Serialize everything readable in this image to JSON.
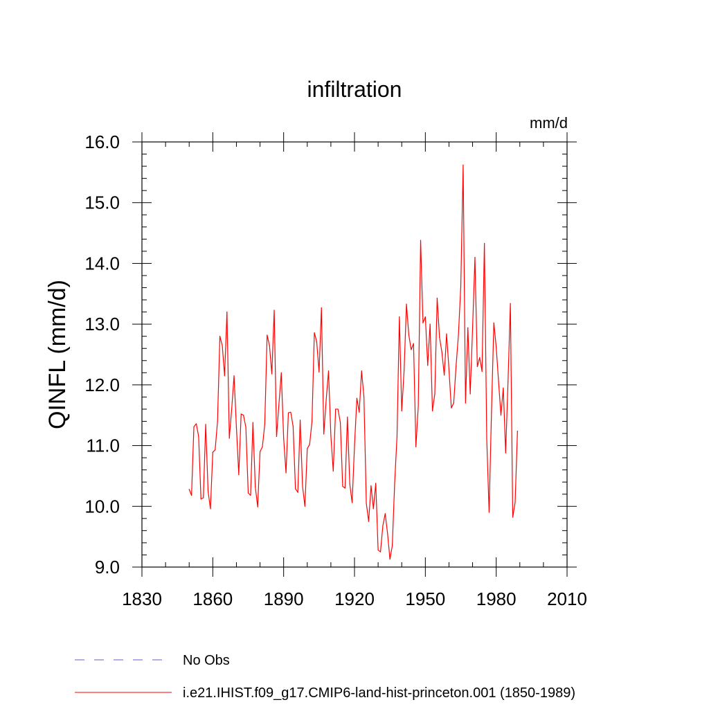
{
  "chart_data": {
    "type": "line",
    "title": "infiltration",
    "units": "mm/d",
    "ylabel": "QINFL  (mm/d)",
    "xlabel": "",
    "xlim": [
      1830,
      2010
    ],
    "ylim": [
      9.0,
      16.0
    ],
    "x_ticks": [
      1830,
      1860,
      1890,
      1920,
      1950,
      1980,
      2010
    ],
    "y_ticks": [
      "9.0",
      "10.0",
      "11.0",
      "12.0",
      "13.0",
      "14.0",
      "15.0",
      "16.0"
    ],
    "grid": false,
    "legend_position": "bottom-left",
    "series": [
      {
        "name": "No Obs",
        "color": "#6a5acd",
        "dash": true,
        "x": [],
        "values": []
      },
      {
        "name": "i.e21.IHIST.f09_g17.CMIP6-land-hist-princeton.001 (1850-1989)",
        "color": "#ff0000",
        "dash": false,
        "x": [
          1850,
          1851,
          1852,
          1853,
          1854,
          1855,
          1856,
          1857,
          1858,
          1859,
          1860,
          1861,
          1862,
          1863,
          1864,
          1865,
          1866,
          1867,
          1868,
          1869,
          1870,
          1871,
          1872,
          1873,
          1874,
          1875,
          1876,
          1877,
          1878,
          1879,
          1880,
          1881,
          1882,
          1883,
          1884,
          1885,
          1886,
          1887,
          1888,
          1889,
          1890,
          1891,
          1892,
          1893,
          1894,
          1895,
          1896,
          1897,
          1898,
          1899,
          1900,
          1901,
          1902,
          1903,
          1904,
          1905,
          1906,
          1907,
          1908,
          1909,
          1910,
          1911,
          1912,
          1913,
          1914,
          1915,
          1916,
          1917,
          1918,
          1919,
          1920,
          1921,
          1922,
          1923,
          1924,
          1925,
          1926,
          1927,
          1928,
          1929,
          1930,
          1931,
          1932,
          1933,
          1934,
          1935,
          1936,
          1937,
          1938,
          1939,
          1940,
          1941,
          1942,
          1943,
          1944,
          1945,
          1946,
          1947,
          1948,
          1949,
          1950,
          1951,
          1952,
          1953,
          1954,
          1955,
          1956,
          1957,
          1958,
          1959,
          1960,
          1961,
          1962,
          1963,
          1964,
          1965,
          1966,
          1967,
          1968,
          1969,
          1970,
          1971,
          1972,
          1973,
          1974,
          1975,
          1976,
          1977,
          1978,
          1979,
          1980,
          1981,
          1982,
          1983,
          1984,
          1985,
          1986,
          1987,
          1988,
          1989
        ],
        "values": [
          10.28,
          10.18,
          11.31,
          11.36,
          11.15,
          10.12,
          10.14,
          11.35,
          10.25,
          9.96,
          10.89,
          10.93,
          11.4,
          12.8,
          12.65,
          12.15,
          13.2,
          11.12,
          11.6,
          12.15,
          11.3,
          10.52,
          11.52,
          11.5,
          11.3,
          10.22,
          10.18,
          11.38,
          10.32,
          9.99,
          10.9,
          10.98,
          11.35,
          12.82,
          12.65,
          12.18,
          13.23,
          11.15,
          11.68,
          12.2,
          11.12,
          10.55,
          11.54,
          11.55,
          11.32,
          10.29,
          10.23,
          11.42,
          10.33,
          10.0,
          10.95,
          11.02,
          11.4,
          12.86,
          12.71,
          12.21,
          13.27,
          11.19,
          11.75,
          12.23,
          11.16,
          10.58,
          11.6,
          11.6,
          11.38,
          10.33,
          10.3,
          11.47,
          10.37,
          10.06,
          11.0,
          11.78,
          11.55,
          12.23,
          11.8,
          10.05,
          9.75,
          10.34,
          9.96,
          10.38,
          9.28,
          9.25,
          9.68,
          9.88,
          9.55,
          9.13,
          9.35,
          10.38,
          11.15,
          13.12,
          11.57,
          12.24,
          13.33,
          12.82,
          12.58,
          12.68,
          10.98,
          11.65,
          14.38,
          13.02,
          13.12,
          12.32,
          13.0,
          11.57,
          11.85,
          13.43,
          12.78,
          12.54,
          12.16,
          12.84,
          12.25,
          11.62,
          11.7,
          12.31,
          12.82,
          13.62,
          15.62,
          11.7,
          12.94,
          11.85,
          12.94,
          14.1,
          12.3,
          12.45,
          12.22,
          14.33,
          11.1,
          9.9,
          11.55,
          13.02,
          12.62,
          12.05,
          11.5,
          11.95,
          10.88,
          12.05,
          13.34,
          9.82,
          10.06,
          11.24
        ]
      }
    ]
  }
}
